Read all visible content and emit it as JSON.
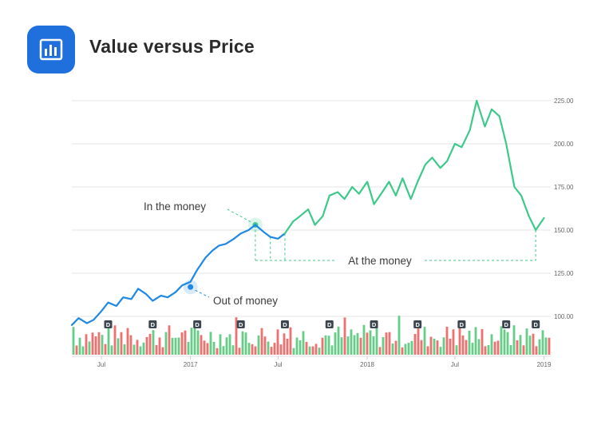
{
  "header": {
    "title": "Value versus Price",
    "icon": "bar-chart-icon",
    "icon_color": "#1f6fdc"
  },
  "chart_data": {
    "type": "line",
    "title": "Value versus Price",
    "xlabel": "",
    "ylabel": "",
    "ylim": [
      100,
      225
    ],
    "grid": true,
    "y_ticks": [
      "100.00",
      "125.00",
      "150.00",
      "175.00",
      "200.00",
      "225.00"
    ],
    "x_ticks": [
      "Jul",
      "2017",
      "Jul",
      "2018",
      "Jul",
      "2019"
    ],
    "x_range": [
      "2016-05",
      "2019-01"
    ],
    "series": [
      {
        "role": "out of money",
        "color": "#1e88e5",
        "x": [
          "2016-05-01",
          "2016-05-15",
          "2016-06-01",
          "2016-06-15",
          "2016-07-01",
          "2016-07-15",
          "2016-08-01",
          "2016-08-15",
          "2016-09-01",
          "2016-09-15",
          "2016-10-01",
          "2016-10-15",
          "2016-11-01",
          "2016-11-15",
          "2016-12-01",
          "2016-12-15",
          "2017-01-01",
          "2017-01-15",
          "2017-02-01",
          "2017-02-15",
          "2017-03-01",
          "2017-03-15",
          "2017-04-01",
          "2017-04-15",
          "2017-05-01",
          "2017-05-15",
          "2017-06-01",
          "2017-06-15",
          "2017-07-01",
          "2017-07-15"
        ],
        "values": [
          95,
          99,
          96,
          98,
          103,
          108,
          106,
          111,
          110,
          116,
          113,
          109,
          112,
          111,
          114,
          118,
          120,
          127,
          134,
          138,
          141,
          142,
          145,
          148,
          150,
          153,
          149,
          146,
          145,
          148
        ]
      },
      {
        "role": "in the money",
        "color": "#3dc98a",
        "x": [
          "2017-07-15",
          "2017-08-01",
          "2017-08-15",
          "2017-09-01",
          "2017-09-15",
          "2017-10-01",
          "2017-10-15",
          "2017-11-01",
          "2017-11-15",
          "2017-12-01",
          "2017-12-15",
          "2018-01-01",
          "2018-01-15",
          "2018-02-01",
          "2018-02-15",
          "2018-03-01",
          "2018-03-15",
          "2018-04-01",
          "2018-04-15",
          "2018-05-01",
          "2018-05-15",
          "2018-06-01",
          "2018-06-15",
          "2018-07-01",
          "2018-07-15",
          "2018-08-01",
          "2018-08-15",
          "2018-09-01",
          "2018-09-15",
          "2018-10-01",
          "2018-10-15",
          "2018-11-01",
          "2018-11-15",
          "2018-12-01",
          "2018-12-15",
          "2019-01-01"
        ],
        "values": [
          148,
          155,
          158,
          162,
          153,
          158,
          170,
          172,
          168,
          175,
          171,
          178,
          165,
          172,
          178,
          170,
          180,
          168,
          178,
          188,
          192,
          186,
          190,
          200,
          198,
          208,
          225,
          210,
          220,
          216,
          200,
          175,
          170,
          158,
          150,
          157
        ]
      }
    ],
    "volume_bars": {
      "colors": {
        "up": "#66cc88",
        "down": "#f07070"
      },
      "count": 150
    },
    "dividend_markers": {
      "label": "D",
      "count": 11
    },
    "annotations": [
      {
        "text": "In the money"
      },
      {
        "text": "Out of money"
      },
      {
        "text": "At the money"
      }
    ]
  }
}
